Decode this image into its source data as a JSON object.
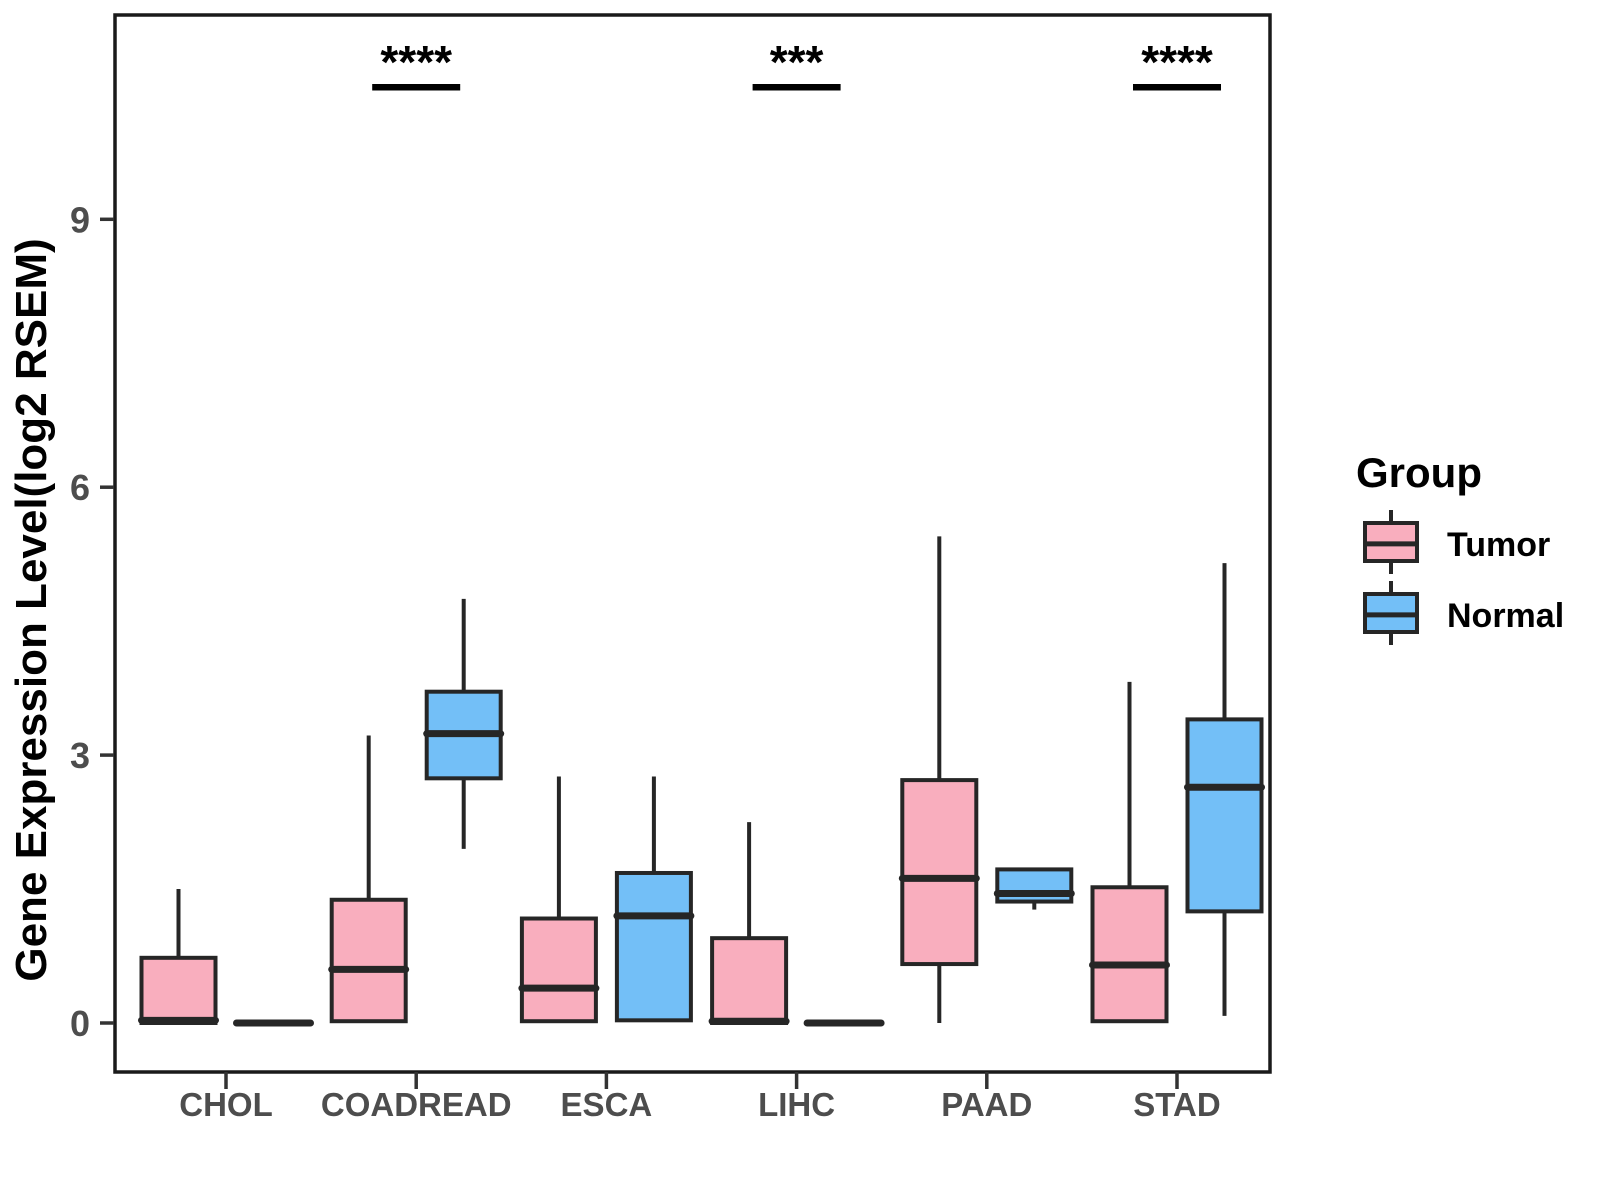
{
  "chart_data": {
    "type": "boxplot",
    "title": "",
    "xlabel": "",
    "ylabel": "Gene Expression Level(log2 RSEM)",
    "categories": [
      "CHOL",
      "COADREAD",
      "ESCA",
      "LIHC",
      "PAAD",
      "STAD"
    ],
    "yticks": [
      0,
      3,
      6,
      9
    ],
    "ylim": [
      -0.55,
      11.3
    ],
    "grid": false,
    "colors": {
      "tumor_fill": "#F9AEBE",
      "normal_fill": "#73BFF7",
      "box_stroke": "#262626",
      "tick_text": "#4d4d4d",
      "annotation": "#000000"
    },
    "legend": {
      "title": "Group",
      "position": "right",
      "entries": [
        {
          "label": "Tumor",
          "color": "#F9AEBE"
        },
        {
          "label": "Normal",
          "color": "#73BFF7"
        }
      ]
    },
    "series": [
      {
        "name": "Tumor",
        "color": "#F9AEBE",
        "boxes": [
          {
            "category": "CHOL",
            "min": 0,
            "q1": 0,
            "med": 0.03,
            "q3": 0.73,
            "max": 1.5
          },
          {
            "category": "COADREAD",
            "min": 0,
            "q1": 0.02,
            "med": 0.6,
            "q3": 1.38,
            "max": 3.22
          },
          {
            "category": "ESCA",
            "min": 0,
            "q1": 0.02,
            "med": 0.39,
            "q3": 1.17,
            "max": 2.76
          },
          {
            "category": "LIHC",
            "min": 0,
            "q1": 0,
            "med": 0.02,
            "q3": 0.95,
            "max": 2.25
          },
          {
            "category": "PAAD",
            "min": 0,
            "q1": 0.66,
            "med": 1.62,
            "q3": 2.72,
            "max": 5.45
          },
          {
            "category": "STAD",
            "min": 0,
            "q1": 0.02,
            "med": 0.65,
            "q3": 1.52,
            "max": 3.82
          }
        ]
      },
      {
        "name": "Normal",
        "color": "#73BFF7",
        "boxes": [
          {
            "category": "CHOL",
            "min": 0,
            "q1": 0,
            "med": 0,
            "q3": 0,
            "max": 0
          },
          {
            "category": "COADREAD",
            "min": 1.95,
            "q1": 2.74,
            "med": 3.24,
            "q3": 3.71,
            "max": 4.75
          },
          {
            "category": "ESCA",
            "min": 0.02,
            "q1": 0.03,
            "med": 1.2,
            "q3": 1.68,
            "max": 2.76
          },
          {
            "category": "LIHC",
            "min": 0,
            "q1": 0,
            "med": 0,
            "q3": 0,
            "max": 0
          },
          {
            "category": "PAAD",
            "min": 1.27,
            "q1": 1.36,
            "med": 1.45,
            "q3": 1.72,
            "max": 1.72
          },
          {
            "category": "STAD",
            "min": 0.08,
            "q1": 1.25,
            "med": 2.64,
            "q3": 3.4,
            "max": 5.15
          }
        ]
      }
    ],
    "significance": [
      {
        "category": "COADREAD",
        "label": "****"
      },
      {
        "category": "LIHC",
        "label": "***"
      },
      {
        "category": "STAD",
        "label": "****"
      }
    ]
  }
}
